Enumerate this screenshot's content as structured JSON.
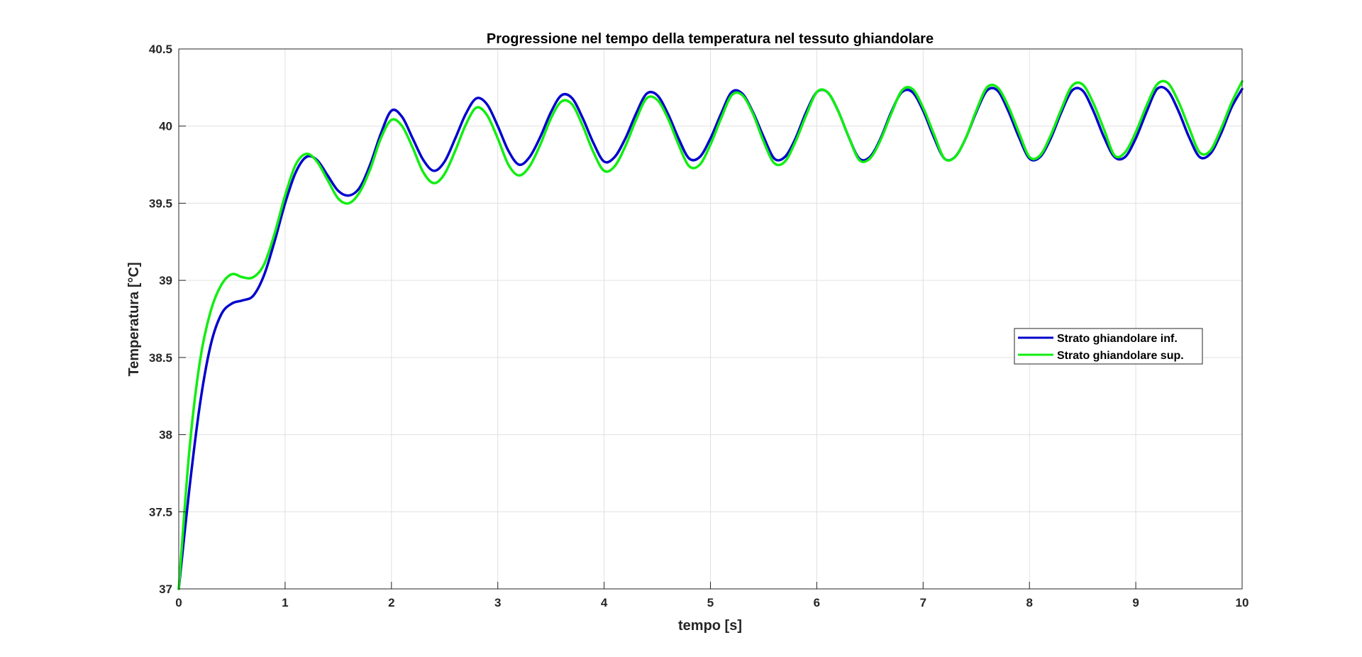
{
  "chart_data": {
    "type": "line",
    "title": "Progressione nel tempo della temperatura nel tessuto ghiandolare",
    "xlabel": "tempo [s]",
    "ylabel": "Temperatura [°C]",
    "xlim": [
      0,
      10
    ],
    "ylim": [
      37,
      40.5
    ],
    "xticks": [
      "0",
      "1",
      "2",
      "3",
      "4",
      "5",
      "6",
      "7",
      "8",
      "9",
      "10"
    ],
    "yticks": [
      "37",
      "37.5",
      "38",
      "38.5",
      "39",
      "39.5",
      "40",
      "40.5"
    ],
    "grid": true,
    "legend_position": "middle-right",
    "x": [
      0,
      0.1,
      0.2,
      0.3,
      0.4,
      0.5,
      0.6,
      0.7,
      0.8,
      0.9,
      1.0,
      1.1,
      1.2,
      1.3,
      1.4,
      1.5,
      1.6,
      1.7,
      1.8,
      1.9,
      2.0,
      2.1,
      2.2,
      2.3,
      2.4,
      2.5,
      2.6,
      2.7,
      2.8,
      2.9,
      3.0,
      3.1,
      3.2,
      3.3,
      3.4,
      3.5,
      3.6,
      3.7,
      3.8,
      3.9,
      4.0,
      4.1,
      4.2,
      4.3,
      4.4,
      4.5,
      4.6,
      4.7,
      4.8,
      4.9,
      5.0,
      5.1,
      5.2,
      5.3,
      5.4,
      5.5,
      5.6,
      5.7,
      5.8,
      5.9,
      6.0,
      6.1,
      6.2,
      6.3,
      6.4,
      6.5,
      6.6,
      6.7,
      6.8,
      6.9,
      7.0,
      7.1,
      7.2,
      7.3,
      7.4,
      7.5,
      7.6,
      7.7,
      7.8,
      7.9,
      8.0,
      8.1,
      8.2,
      8.3,
      8.4,
      8.5,
      8.6,
      8.7,
      8.8,
      8.9,
      9.0,
      9.1,
      9.2,
      9.3,
      9.4,
      9.5,
      9.6,
      9.7,
      9.8,
      9.9,
      10.0
    ],
    "series": [
      {
        "name": "Strato ghiandolare inf.",
        "color": "#0000cc",
        "values": [
          37.0,
          37.65,
          38.2,
          38.58,
          38.78,
          38.85,
          38.87,
          38.9,
          39.03,
          39.25,
          39.5,
          39.7,
          39.8,
          39.78,
          39.68,
          39.58,
          39.55,
          39.6,
          39.75,
          39.95,
          40.1,
          40.06,
          39.92,
          39.78,
          39.71,
          39.77,
          39.92,
          40.08,
          40.18,
          40.14,
          40.0,
          39.84,
          39.75,
          39.8,
          39.93,
          40.09,
          40.2,
          40.18,
          40.05,
          39.89,
          39.77,
          39.8,
          39.92,
          40.08,
          40.21,
          40.2,
          40.08,
          39.92,
          39.79,
          39.8,
          39.92,
          40.08,
          40.22,
          40.21,
          40.09,
          39.93,
          39.79,
          39.8,
          39.92,
          40.09,
          40.22,
          40.22,
          40.1,
          39.93,
          39.79,
          39.8,
          39.92,
          40.09,
          40.22,
          40.22,
          40.1,
          39.93,
          39.79,
          39.8,
          39.92,
          40.09,
          40.23,
          40.23,
          40.1,
          39.93,
          39.79,
          39.8,
          39.92,
          40.09,
          40.23,
          40.23,
          40.1,
          39.93,
          39.8,
          39.8,
          39.92,
          40.09,
          40.24,
          40.23,
          40.1,
          39.93,
          39.8,
          39.82,
          39.95,
          40.12,
          40.24
        ]
      },
      {
        "name": "Strato ghiandolare sup.",
        "color": "#11ee11",
        "values": [
          37.0,
          37.9,
          38.48,
          38.8,
          38.97,
          39.04,
          39.02,
          39.02,
          39.1,
          39.3,
          39.55,
          39.75,
          39.82,
          39.77,
          39.65,
          39.53,
          39.5,
          39.57,
          39.72,
          39.92,
          40.04,
          40.0,
          39.86,
          39.7,
          39.63,
          39.69,
          39.84,
          40.01,
          40.12,
          40.07,
          39.92,
          39.75,
          39.68,
          39.74,
          39.88,
          40.05,
          40.16,
          40.14,
          40.0,
          39.83,
          39.71,
          39.74,
          39.87,
          40.04,
          40.18,
          40.17,
          40.05,
          39.88,
          39.74,
          39.75,
          39.88,
          40.05,
          40.2,
          40.2,
          40.08,
          39.9,
          39.76,
          39.77,
          39.9,
          40.07,
          40.22,
          40.22,
          40.1,
          39.93,
          39.78,
          39.79,
          39.91,
          40.08,
          40.23,
          40.24,
          40.12,
          39.95,
          39.79,
          39.8,
          39.92,
          40.1,
          40.25,
          40.25,
          40.13,
          39.96,
          39.8,
          39.81,
          39.94,
          40.11,
          40.26,
          40.27,
          40.15,
          39.98,
          39.81,
          39.83,
          39.96,
          40.13,
          40.27,
          40.28,
          40.16,
          39.99,
          39.83,
          39.84,
          39.98,
          40.15,
          40.29
        ]
      }
    ]
  }
}
